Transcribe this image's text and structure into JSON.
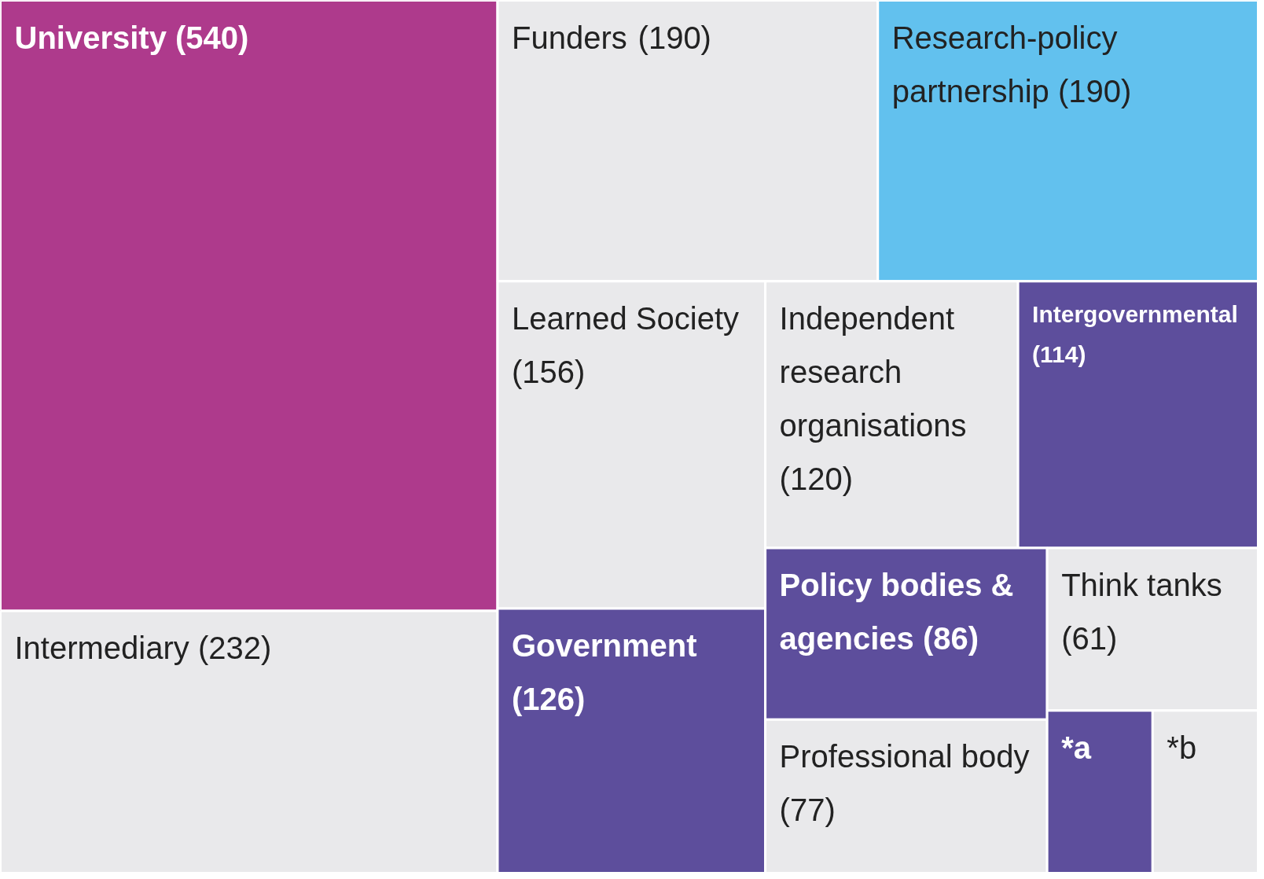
{
  "chart_data": {
    "type": "other",
    "categories": [
      "University",
      "Intermediary",
      "Funders",
      "Research-policy partnership",
      "Learned Society",
      "Government",
      "Independent research organisations",
      "Intergovernmental",
      "Policy bodies & agencies",
      "Professional body",
      "Think tanks",
      "*a",
      "*b"
    ],
    "value_labels": [
      "(540)",
      "(232)",
      "(190)",
      "(190)",
      "(156)",
      "(126)",
      "(120)",
      "(114)",
      "(86)",
      "(77)",
      "(61)",
      null,
      null
    ],
    "values": [
      540,
      232,
      190,
      190,
      156,
      126,
      120,
      114,
      86,
      77,
      61,
      null,
      null
    ],
    "colors": [
      "#ae3a8c",
      "#e9e9eb",
      "#e9e9eb",
      "#62c1ee",
      "#e9e9eb",
      "#5d4e9c",
      "#e9e9eb",
      "#5d4e9c",
      "#5d4e9c",
      "#e9e9eb",
      "#e9e9eb",
      "#5d4e9c",
      "#e9e9eb"
    ]
  }
}
